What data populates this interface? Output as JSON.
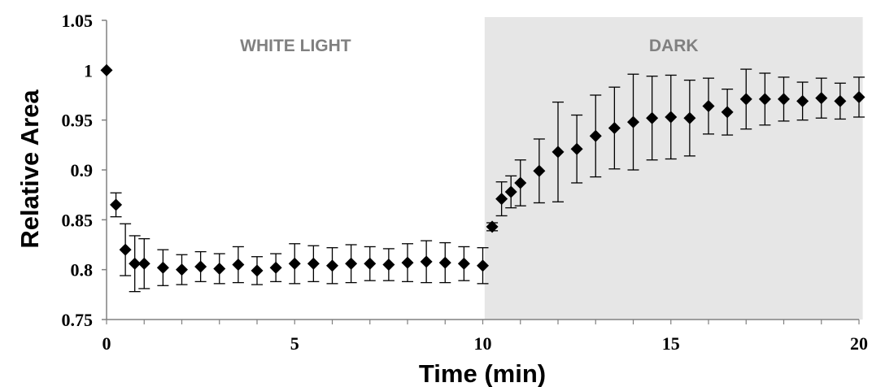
{
  "chart_data": {
    "type": "scatter",
    "xlabel": "Time (min)",
    "ylabel": "Relative Area",
    "xlim": [
      0,
      20
    ],
    "ylim": [
      0.75,
      1.05
    ],
    "x_ticks": [
      0,
      5,
      10,
      15,
      20
    ],
    "x_tick_labels": [
      "0",
      "5",
      "10",
      "15",
      "20"
    ],
    "y_ticks": [
      0.75,
      0.8,
      0.85,
      0.9,
      0.95,
      1.0,
      1.05
    ],
    "y_tick_labels": [
      "0.75",
      "0.8",
      "0.85",
      "0.9",
      "0.95",
      "1",
      "1.05"
    ],
    "grid": false,
    "marker": "diamond",
    "marker_color": "#000000",
    "regions": [
      {
        "label": "WHITE LIGHT",
        "x": [
          0,
          10.05
        ],
        "color": "#ffffff"
      },
      {
        "label": "DARK",
        "x": [
          10.05,
          20.1
        ],
        "color": "#e6e6e6"
      }
    ],
    "series": [
      {
        "x": [
          0,
          0.25,
          0.5,
          0.75,
          1,
          1.5,
          2,
          2.5,
          3,
          3.5,
          4,
          4.5,
          5,
          5.5,
          6,
          6.5,
          7,
          7.5,
          8,
          8.5,
          9,
          9.5,
          10,
          10.25,
          10.5,
          10.75,
          11,
          11.5,
          12,
          12.5,
          13,
          13.5,
          14,
          14.5,
          15,
          15.5,
          16,
          16.5,
          17,
          17.5,
          18,
          18.5,
          19,
          19.5,
          20
        ],
        "y": [
          1.0,
          0.865,
          0.82,
          0.806,
          0.806,
          0.802,
          0.8,
          0.803,
          0.801,
          0.805,
          0.799,
          0.802,
          0.806,
          0.806,
          0.804,
          0.806,
          0.806,
          0.805,
          0.807,
          0.808,
          0.807,
          0.806,
          0.804,
          0.843,
          0.871,
          0.878,
          0.887,
          0.899,
          0.918,
          0.921,
          0.934,
          0.942,
          0.948,
          0.952,
          0.953,
          0.952,
          0.964,
          0.958,
          0.971,
          0.971,
          0.971,
          0.969,
          0.972,
          0.969,
          0.973
        ],
        "error": [
          0,
          0.012,
          0.026,
          0.028,
          0.025,
          0.018,
          0.015,
          0.015,
          0.015,
          0.018,
          0.014,
          0.014,
          0.02,
          0.018,
          0.018,
          0.019,
          0.017,
          0.016,
          0.019,
          0.021,
          0.02,
          0.017,
          0.018,
          0.004,
          0.017,
          0.016,
          0.023,
          0.032,
          0.05,
          0.034,
          0.041,
          0.041,
          0.048,
          0.042,
          0.042,
          0.038,
          0.028,
          0.023,
          0.03,
          0.026,
          0.022,
          0.019,
          0.02,
          0.018,
          0.02
        ]
      }
    ]
  }
}
